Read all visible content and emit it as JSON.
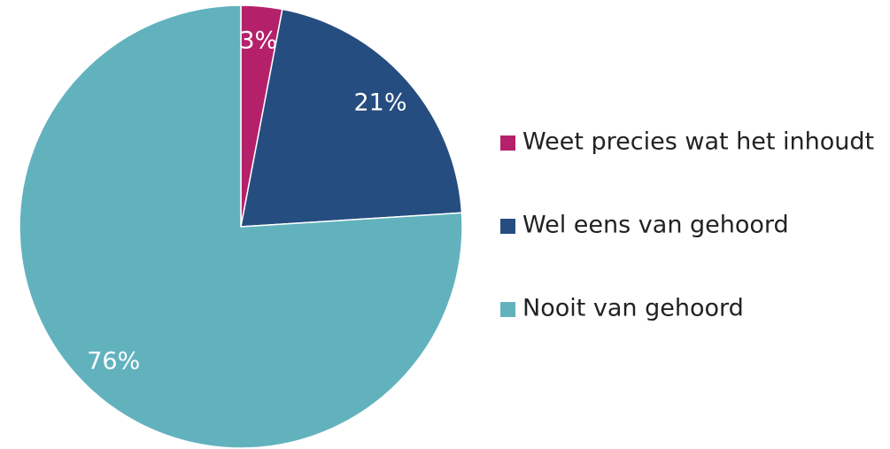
{
  "chart_data": {
    "type": "pie",
    "categories": [
      "Weet precies wat het inhoudt",
      "Wel eens van gehoord",
      "Nooit van gehoord"
    ],
    "values": [
      3,
      21,
      76
    ],
    "value_labels": [
      "3%",
      "21%",
      "76%"
    ],
    "colors": [
      "#b5206b",
      "#264d80",
      "#62b2be"
    ],
    "legend": "right"
  }
}
